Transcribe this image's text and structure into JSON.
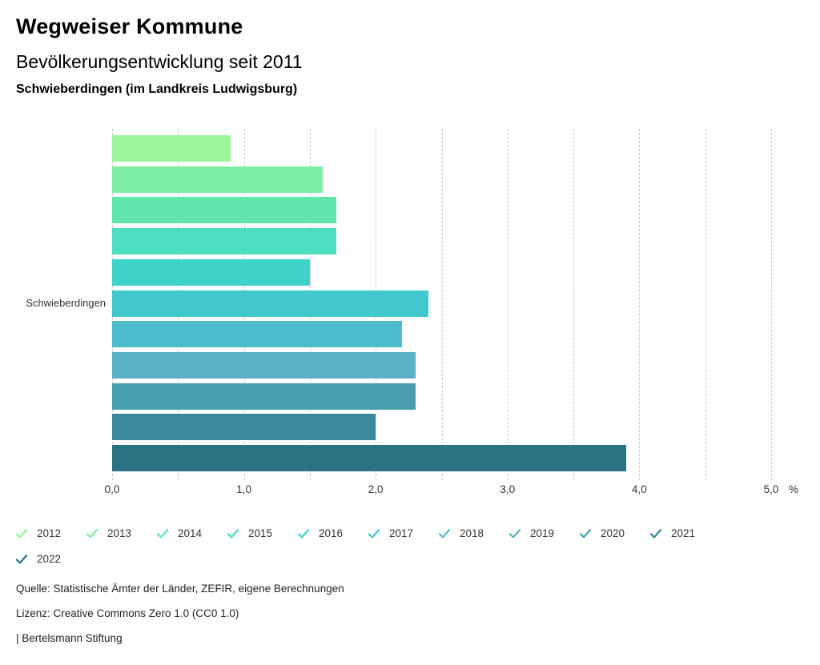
{
  "chart_data": {
    "type": "bar",
    "orientation": "horizontal",
    "title": "Wegweiser Kommune",
    "subtitle": "Bevölkerungsentwicklung seit 2011",
    "region_line": "Schwieberdingen (im Landkreis Ludwigsburg)",
    "group_label": "Schwieberdingen",
    "categories": [
      "2012",
      "2013",
      "2014",
      "2015",
      "2016",
      "2017",
      "2018",
      "2019",
      "2020",
      "2021",
      "2022"
    ],
    "values": [
      0.9,
      1.6,
      1.7,
      1.7,
      1.5,
      2.4,
      2.2,
      2.3,
      2.3,
      2.0,
      3.9
    ],
    "colors": [
      "#9cf49c",
      "#7deea3",
      "#60e6ad",
      "#4cdec0",
      "#3ed2cb",
      "#41c7ce",
      "#4dbdcd",
      "#5bb2c7",
      "#4a9fb0",
      "#3b8a9b",
      "#2b7384"
    ],
    "xlim": [
      0,
      5
    ],
    "x_tick_step": 1.0,
    "x_grid_step": 0.5,
    "x_tick_labels": [
      "0,0",
      "1,0",
      "2,0",
      "3,0",
      "4,0",
      "5,0"
    ],
    "x_unit": "%",
    "grid": "dashed-vertical",
    "legend_position": "bottom",
    "legend_icon": "check-icon"
  },
  "footer": {
    "source": "Quelle: Statistische Ämter der Länder, ZEFIR, eigene Berechnungen",
    "license": "Lizenz: Creative Commons Zero 1.0 (CC0 1.0)",
    "attribution": "| Bertelsmann Stiftung"
  }
}
